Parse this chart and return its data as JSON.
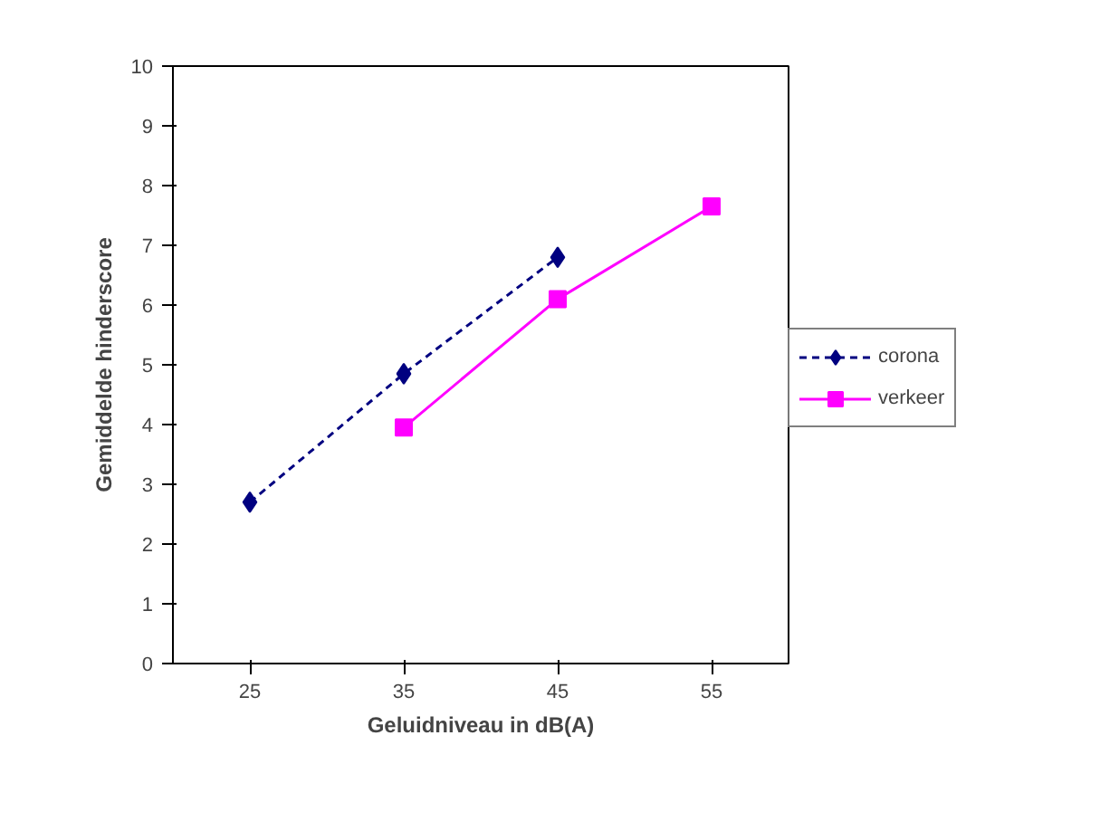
{
  "chart_data": {
    "type": "line",
    "xlabel": "Geluidniveau in dB(A)",
    "ylabel": "Gemiddelde hinderscore",
    "xlim": [
      20,
      60
    ],
    "xticks": [
      25,
      35,
      45,
      55
    ],
    "ylim": [
      0,
      10
    ],
    "yticks": [
      0,
      1,
      2,
      3,
      4,
      5,
      6,
      7,
      8,
      9,
      10
    ],
    "grid": false,
    "legend": "right",
    "series": [
      {
        "name": "corona",
        "color": "#000080",
        "x": [
          25,
          35,
          45
        ],
        "values": [
          2.7,
          4.85,
          6.8
        ],
        "marker": "diamond",
        "line_style": "dashed"
      },
      {
        "name": "verkeer",
        "color": "#ff00ff",
        "x": [
          35,
          45,
          55
        ],
        "values": [
          3.95,
          6.1,
          7.65
        ],
        "marker": "square",
        "line_style": "solid"
      }
    ]
  }
}
